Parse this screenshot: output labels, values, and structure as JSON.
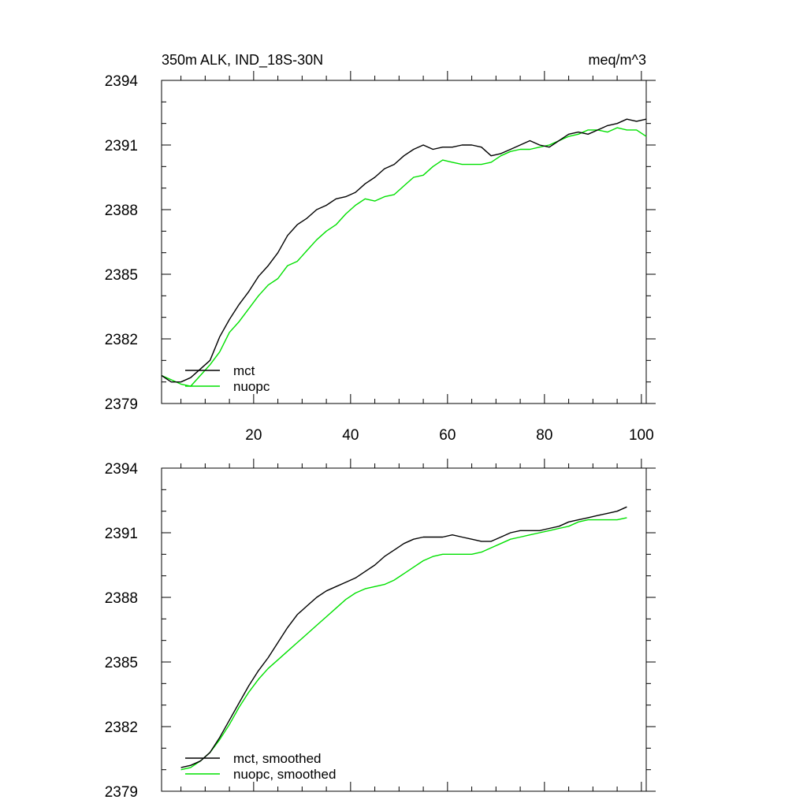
{
  "colors": {
    "mct": "#000000",
    "nuopc": "#00e000"
  },
  "chart_data": [
    {
      "type": "line",
      "title_left": "350m ALK, IND_18S-30N",
      "title_right": "meq/m^3",
      "xlim": [
        1,
        101
      ],
      "ylim": [
        2379,
        2394
      ],
      "yticks": [
        2379,
        2382,
        2385,
        2388,
        2391,
        2394
      ],
      "ytick_labels": [
        "2379",
        "2382",
        "2385",
        "2388",
        "2391",
        "2394"
      ],
      "xticks": [
        20,
        40,
        60,
        80,
        100
      ],
      "xtick_labels": [
        "20",
        "40",
        "60",
        "80",
        "100"
      ],
      "legend_position": "bottom-left",
      "series": [
        {
          "name": "mct",
          "color": "#000000",
          "x": [
            1,
            3,
            5,
            7,
            9,
            11,
            13,
            15,
            17,
            19,
            21,
            23,
            25,
            27,
            29,
            31,
            33,
            35,
            37,
            39,
            41,
            43,
            45,
            47,
            49,
            51,
            53,
            55,
            57,
            59,
            61,
            63,
            65,
            67,
            69,
            71,
            73,
            75,
            77,
            79,
            81,
            83,
            85,
            87,
            89,
            91,
            93,
            95,
            97,
            99,
            101
          ],
          "y": [
            2380.3,
            2380.0,
            2380.0,
            2380.2,
            2380.6,
            2381.0,
            2382.1,
            2382.9,
            2383.6,
            2384.2,
            2384.9,
            2385.4,
            2386.0,
            2386.8,
            2387.3,
            2387.6,
            2388.0,
            2388.2,
            2388.5,
            2388.6,
            2388.8,
            2389.2,
            2389.5,
            2389.9,
            2390.1,
            2390.5,
            2390.8,
            2391.0,
            2390.8,
            2390.9,
            2390.9,
            2391.0,
            2391.0,
            2390.9,
            2390.5,
            2390.6,
            2390.8,
            2391.0,
            2391.2,
            2391.0,
            2390.9,
            2391.2,
            2391.5,
            2391.6,
            2391.5,
            2391.7,
            2391.9,
            2392.0,
            2392.2,
            2392.1,
            2392.2
          ]
        },
        {
          "name": "nuopc",
          "color": "#00e000",
          "x": [
            1,
            3,
            5,
            7,
            9,
            11,
            13,
            15,
            17,
            19,
            21,
            23,
            25,
            27,
            29,
            31,
            33,
            35,
            37,
            39,
            41,
            43,
            45,
            47,
            49,
            51,
            53,
            55,
            57,
            59,
            61,
            63,
            65,
            67,
            69,
            71,
            73,
            75,
            77,
            79,
            81,
            83,
            85,
            87,
            89,
            91,
            93,
            95,
            97,
            99,
            101
          ],
          "y": [
            2380.3,
            2380.1,
            2379.9,
            2379.8,
            2380.3,
            2380.8,
            2381.4,
            2382.3,
            2382.8,
            2383.4,
            2384.0,
            2384.5,
            2384.8,
            2385.4,
            2385.6,
            2386.1,
            2386.6,
            2387.0,
            2387.3,
            2387.8,
            2388.2,
            2388.5,
            2388.4,
            2388.6,
            2388.7,
            2389.1,
            2389.5,
            2389.6,
            2390.0,
            2390.3,
            2390.2,
            2390.1,
            2390.1,
            2390.1,
            2390.2,
            2390.5,
            2390.7,
            2390.8,
            2390.8,
            2390.9,
            2391.0,
            2391.2,
            2391.4,
            2391.5,
            2391.7,
            2391.7,
            2391.6,
            2391.8,
            2391.7,
            2391.7,
            2391.4
          ]
        }
      ]
    },
    {
      "type": "line",
      "xlim": [
        1,
        101
      ],
      "ylim": [
        2379,
        2394
      ],
      "yticks": [
        2379,
        2382,
        2385,
        2388,
        2391,
        2394
      ],
      "ytick_labels": [
        "2379",
        "2382",
        "2385",
        "2388",
        "2391",
        "2394"
      ],
      "xticks": [
        20,
        40,
        60,
        80,
        100
      ],
      "legend_position": "bottom-left",
      "series": [
        {
          "name": "mct, smoothed",
          "color": "#000000",
          "x": [
            5,
            7,
            9,
            11,
            13,
            15,
            17,
            19,
            21,
            23,
            25,
            27,
            29,
            31,
            33,
            35,
            37,
            39,
            41,
            43,
            45,
            47,
            49,
            51,
            53,
            55,
            57,
            59,
            61,
            63,
            65,
            67,
            69,
            71,
            73,
            75,
            77,
            79,
            81,
            83,
            85,
            87,
            89,
            91,
            93,
            95,
            97
          ],
          "y": [
            2380.1,
            2380.2,
            2380.4,
            2380.8,
            2381.5,
            2382.3,
            2383.1,
            2383.9,
            2384.6,
            2385.2,
            2385.9,
            2386.6,
            2387.2,
            2387.6,
            2388.0,
            2388.3,
            2388.5,
            2388.7,
            2388.9,
            2389.2,
            2389.5,
            2389.9,
            2390.2,
            2390.5,
            2390.7,
            2390.8,
            2390.8,
            2390.8,
            2390.9,
            2390.8,
            2390.7,
            2390.6,
            2390.6,
            2390.8,
            2391.0,
            2391.1,
            2391.1,
            2391.1,
            2391.2,
            2391.3,
            2391.5,
            2391.6,
            2391.7,
            2391.8,
            2391.9,
            2392.0,
            2392.2
          ]
        },
        {
          "name": "nuopc, smoothed",
          "color": "#00e000",
          "x": [
            5,
            7,
            9,
            11,
            13,
            15,
            17,
            19,
            21,
            23,
            25,
            27,
            29,
            31,
            33,
            35,
            37,
            39,
            41,
            43,
            45,
            47,
            49,
            51,
            53,
            55,
            57,
            59,
            61,
            63,
            65,
            67,
            69,
            71,
            73,
            75,
            77,
            79,
            81,
            83,
            85,
            87,
            89,
            91,
            93,
            95,
            97
          ],
          "y": [
            2380.0,
            2380.1,
            2380.4,
            2380.8,
            2381.4,
            2382.1,
            2382.9,
            2383.6,
            2384.2,
            2384.7,
            2385.1,
            2385.5,
            2385.9,
            2386.3,
            2386.7,
            2387.1,
            2387.5,
            2387.9,
            2388.2,
            2388.4,
            2388.5,
            2388.6,
            2388.8,
            2389.1,
            2389.4,
            2389.7,
            2389.9,
            2390.0,
            2390.0,
            2390.0,
            2390.0,
            2390.1,
            2390.3,
            2390.5,
            2390.7,
            2390.8,
            2390.9,
            2391.0,
            2391.1,
            2391.2,
            2391.3,
            2391.5,
            2391.6,
            2391.6,
            2391.6,
            2391.6,
            2391.7
          ]
        }
      ]
    }
  ]
}
